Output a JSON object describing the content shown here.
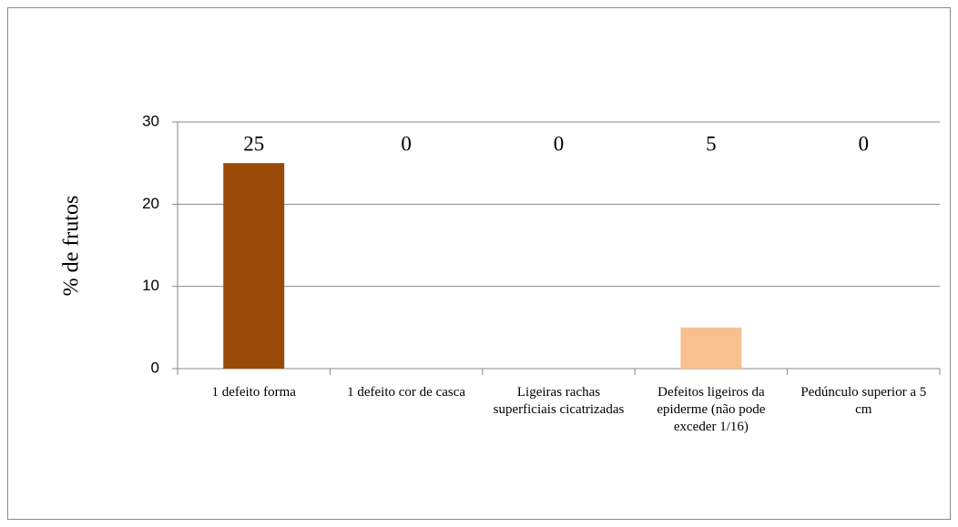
{
  "chart_data": {
    "type": "bar",
    "y_label": "% de frutos",
    "categories": [
      "1 defeito forma",
      "1 defeito cor de casca",
      "Ligeiras rachas superficiais cicatrizadas",
      "Defeitos ligeiros da epiderme (não pode exceder 1/16)",
      "Pedúnculo superior a 5 cm"
    ],
    "values": [
      25,
      0,
      0,
      5,
      0
    ],
    "colors": [
      "#994a07",
      null,
      null,
      "#f9c08f",
      null
    ],
    "ylim": [
      0,
      30
    ],
    "yticks": [
      0,
      10,
      20,
      30
    ],
    "grid": true
  }
}
